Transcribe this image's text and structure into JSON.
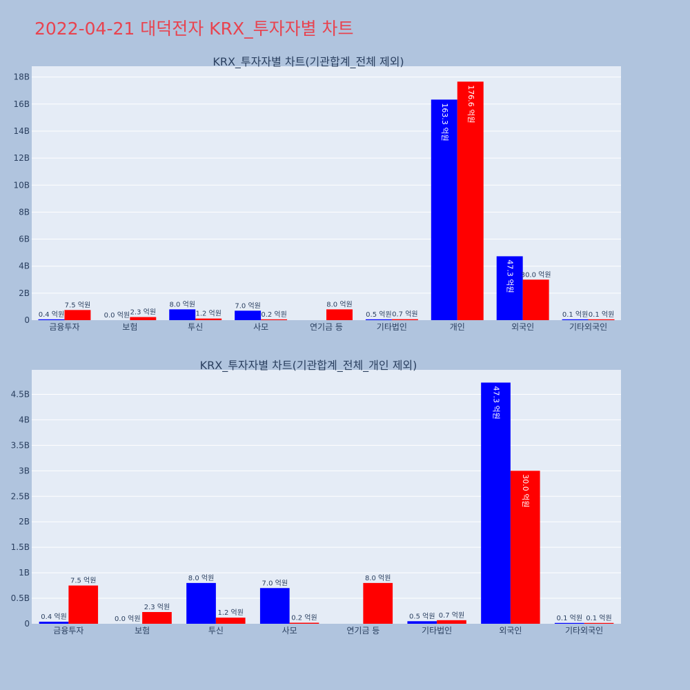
{
  "page": {
    "title": "2022-04-21 대덕전자 KRX_투자자별 차트"
  },
  "colors": {
    "series_a": "#0000ff",
    "series_b": "#ff0000",
    "plot_bg": "#e5ecf6",
    "page_bg": "#b0c4de",
    "title": "#e8434f"
  },
  "chart_data": [
    {
      "type": "bar",
      "title": "KRX_투자자별 차트(기관합계_전체 제외)",
      "categories": [
        "금융투자",
        "보험",
        "투신",
        "사모",
        "연기금 등",
        "기타법인",
        "개인",
        "외국인",
        "기타외국인"
      ],
      "series": [
        {
          "values": [
            40000000,
            0,
            800000000,
            700000000,
            0,
            50000000,
            16330000000,
            4730000000,
            10000000
          ],
          "labels": [
            "0.4 억원",
            "0.0 억원",
            "8.0 억원",
            "7.0 억원",
            "",
            "0.5 억원",
            "163.3 억원",
            "47.3 억원",
            "0.1 억원"
          ]
        },
        {
          "values": [
            750000000,
            230000000,
            120000000,
            20000000,
            800000000,
            70000000,
            17660000000,
            3000000000,
            10000000
          ],
          "labels": [
            "7.5 억원",
            "2.3 억원",
            "1.2 억원",
            "0.2 억원",
            "8.0 억원",
            "0.7 억원",
            "176.6 억원",
            "30.0 억원",
            "0.1 억원"
          ]
        }
      ],
      "ylim": [
        0,
        18800000000
      ],
      "yticks": [
        0,
        2000000000,
        4000000000,
        6000000000,
        8000000000,
        10000000000,
        12000000000,
        14000000000,
        16000000000,
        18000000000
      ],
      "ytick_labels": [
        "0",
        "2B",
        "4B",
        "6B",
        "8B",
        "10B",
        "12B",
        "14B",
        "16B",
        "18B"
      ],
      "grid": true,
      "legend": "none"
    },
    {
      "type": "bar",
      "title": "KRX_투자자별 차트(기관합계_전체_개인 제외)",
      "categories": [
        "금융투자",
        "보험",
        "투신",
        "사모",
        "연기금 등",
        "기타법인",
        "외국인",
        "기타외국인"
      ],
      "series": [
        {
          "values": [
            40000000,
            0,
            800000000,
            700000000,
            0,
            50000000,
            4730000000,
            10000000
          ],
          "labels": [
            "0.4 억원",
            "0.0 억원",
            "8.0 억원",
            "7.0 억원",
            "",
            "0.5 억원",
            "47.3 억원",
            "0.1 억원"
          ]
        },
        {
          "values": [
            750000000,
            230000000,
            120000000,
            20000000,
            800000000,
            70000000,
            3000000000,
            10000000
          ],
          "labels": [
            "7.5 억원",
            "2.3 억원",
            "1.2 억원",
            "0.2 억원",
            "8.0 억원",
            "0.7 억원",
            "30.0 억원",
            "0.1 억원"
          ]
        }
      ],
      "ylim": [
        0,
        4980000000
      ],
      "yticks": [
        0,
        500000000,
        1000000000,
        1500000000,
        2000000000,
        2500000000,
        3000000000,
        3500000000,
        4000000000,
        4500000000
      ],
      "ytick_labels": [
        "0",
        "0.5B",
        "1B",
        "1.5B",
        "2B",
        "2.5B",
        "3B",
        "3.5B",
        "4B",
        "4.5B"
      ],
      "grid": true,
      "legend": "none"
    }
  ]
}
